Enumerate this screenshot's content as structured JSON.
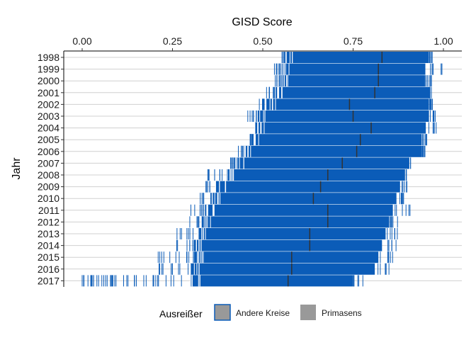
{
  "chart_data": {
    "type": "strip",
    "title": "",
    "xlabel": "GISD Score",
    "ylabel": "Jahr",
    "x_axis_position": "top",
    "xlim": [
      -0.05,
      1.05
    ],
    "xticks": [
      0.0,
      0.25,
      0.5,
      0.75,
      1.0
    ],
    "xtick_labels": [
      "0.00",
      "0.25",
      "0.50",
      "0.75",
      "1.00"
    ],
    "grid": "horizontal",
    "categories": [
      "1998",
      "1999",
      "2000",
      "2001",
      "2002",
      "2003",
      "2004",
      "2005",
      "2006",
      "2007",
      "2008",
      "2009",
      "2010",
      "2011",
      "2012",
      "2013",
      "2014",
      "2015",
      "2016",
      "2017"
    ],
    "dense_ranges": [
      [
        0.56,
        0.96
      ],
      [
        0.55,
        0.95
      ],
      [
        0.55,
        0.95
      ],
      [
        0.53,
        0.96
      ],
      [
        0.51,
        0.96
      ],
      [
        0.48,
        0.96
      ],
      [
        0.48,
        0.95
      ],
      [
        0.47,
        0.94
      ],
      [
        0.45,
        0.94
      ],
      [
        0.42,
        0.9
      ],
      [
        0.4,
        0.89
      ],
      [
        0.37,
        0.88
      ],
      [
        0.36,
        0.87
      ],
      [
        0.34,
        0.86
      ],
      [
        0.33,
        0.85
      ],
      [
        0.32,
        0.84
      ],
      [
        0.31,
        0.83
      ],
      [
        0.31,
        0.82
      ],
      [
        0.3,
        0.81
      ],
      [
        0.3,
        0.75
      ]
    ],
    "sparse_ranges": [
      [
        0.55,
        0.97
      ],
      [
        0.53,
        1.0
      ],
      [
        0.53,
        0.97
      ],
      [
        0.51,
        0.97
      ],
      [
        0.49,
        0.97
      ],
      [
        0.45,
        0.98
      ],
      [
        0.48,
        0.98
      ],
      [
        0.46,
        0.96
      ],
      [
        0.43,
        0.95
      ],
      [
        0.41,
        0.91
      ],
      [
        0.33,
        0.9
      ],
      [
        0.33,
        0.9
      ],
      [
        0.32,
        0.89
      ],
      [
        0.3,
        0.91
      ],
      [
        0.29,
        0.88
      ],
      [
        0.26,
        0.88
      ],
      [
        0.25,
        0.87
      ],
      [
        0.21,
        0.86
      ],
      [
        0.21,
        0.85
      ],
      [
        0.0,
        0.78
      ]
    ],
    "primasens": [
      0.83,
      0.82,
      0.82,
      0.81,
      0.74,
      0.75,
      0.8,
      0.77,
      0.76,
      0.72,
      0.68,
      0.66,
      0.64,
      0.68,
      0.68,
      0.63,
      0.63,
      0.58,
      0.58,
      0.57
    ],
    "outliers_2017": [
      0.0,
      0.09,
      0.15
    ],
    "legend": {
      "title": "Ausreißer",
      "position": "bottom",
      "items": [
        {
          "label": "Andere Kreise",
          "fill": "#999999",
          "border": "#0b5cb8"
        },
        {
          "label": "Primasens",
          "fill": "#999999",
          "border": "#999999"
        }
      ]
    },
    "colors": {
      "strip": "#0b5cb8",
      "primasens": "#333333"
    }
  }
}
